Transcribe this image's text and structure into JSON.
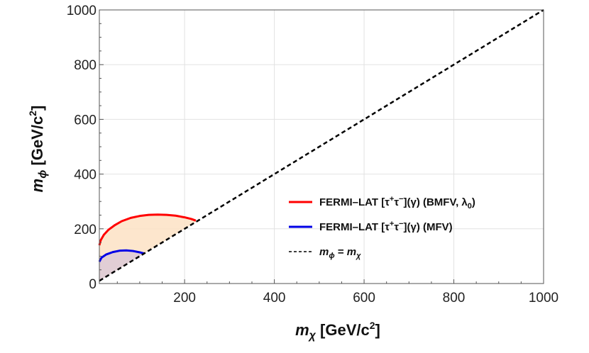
{
  "chart_data": {
    "type": "line",
    "xlabel": {
      "symbol": "m",
      "subscript": "χ",
      "unit": "[GeV/c",
      "unit_sup": "2",
      "unit_close": "]"
    },
    "ylabel": {
      "symbol": "m",
      "subscript": "ϕ",
      "unit": "[GeV/c",
      "unit_sup": "2",
      "unit_close": "]"
    },
    "xlim": [
      10,
      1000
    ],
    "ylim": [
      0,
      1000
    ],
    "xticks": [
      200,
      400,
      600,
      800,
      1000
    ],
    "yticks": [
      0,
      200,
      400,
      600,
      800,
      1000
    ],
    "x_tick_labels": [
      "200",
      "400",
      "600",
      "800",
      "1000"
    ],
    "y_tick_labels": [
      "0",
      "200",
      "400",
      "600",
      "800",
      "1000"
    ],
    "grid": true,
    "legend_position": "center-right",
    "series": [
      {
        "name": "bmfv",
        "label": "FERMI–LAT [τ⁺τ⁻](γ) (BMFV, λ₀)",
        "label_parts": {
          "prefix": "FERMI–LAT [τ",
          "sup1": "+",
          "mid": "τ",
          "sup2": "−",
          "after": "](γ) (BMFV, λ",
          "sub": "0",
          "suffix": ")"
        },
        "color": "#ff0000",
        "fill_color": "#fde2c4",
        "style": "solid",
        "x": [
          10,
          13,
          20,
          30,
          45,
          60,
          80,
          100,
          120,
          140,
          160,
          180,
          200,
          215,
          225
        ],
        "y": [
          140,
          158,
          178,
          196,
          214,
          228,
          240,
          247,
          251,
          252,
          251,
          248,
          242,
          236,
          230
        ]
      },
      {
        "name": "mfv",
        "label": "FERMI–LAT [τ⁺τ⁻](γ) (MFV)",
        "label_parts": {
          "prefix": "FERMI–LAT [τ",
          "sup1": "+",
          "mid": "τ",
          "sup2": "−",
          "after": "](γ) (MFV)"
        },
        "color": "#0000e6",
        "fill_color": "#dcc9d6",
        "style": "solid",
        "x": [
          10,
          15,
          25,
          40,
          55,
          70,
          85,
          100,
          110
        ],
        "y": [
          80,
          95,
          106,
          115,
          120,
          121,
          119,
          114,
          110
        ]
      },
      {
        "name": "diagonal",
        "label": "m_ϕ = m_χ",
        "label_parts": {
          "m1": "m",
          "s1": "ϕ",
          "eq": " = ",
          "m2": "m",
          "s2": "χ"
        },
        "color": "#000000",
        "style": "dashed",
        "x": [
          10,
          1000
        ],
        "y": [
          10,
          1000
        ]
      }
    ]
  }
}
